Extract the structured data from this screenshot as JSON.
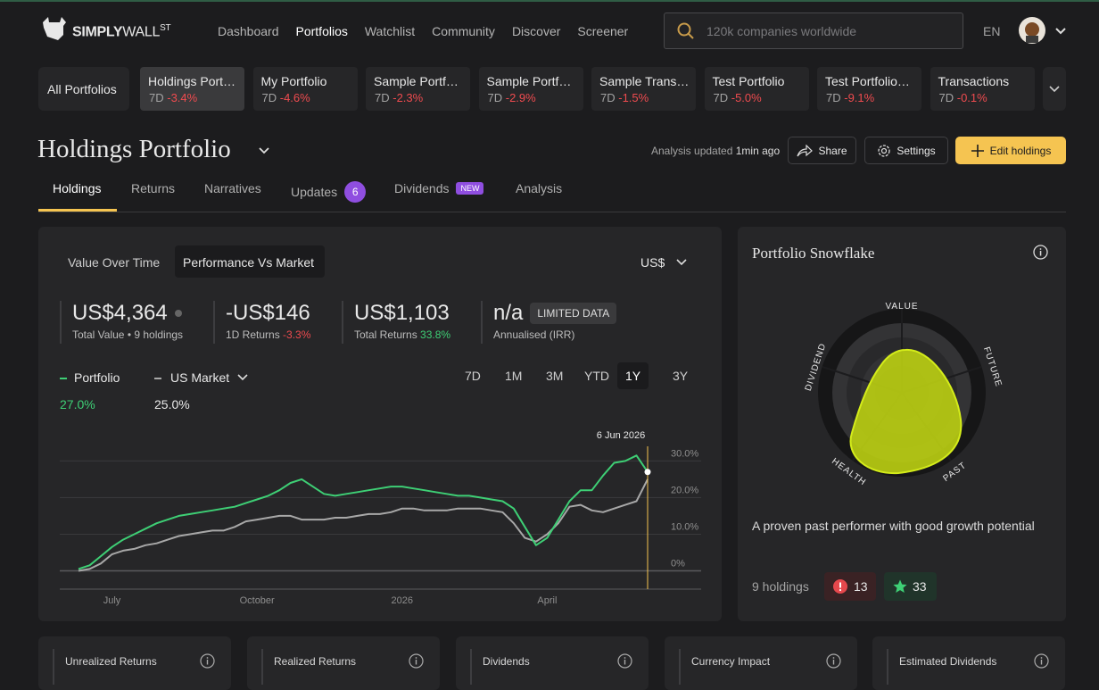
{
  "nav": {
    "logo": [
      "SIMPLY",
      "WALL",
      "ST"
    ],
    "links": [
      "Dashboard",
      "Portfolios",
      "Watchlist",
      "Community",
      "Discover",
      "Screener"
    ],
    "search_placeholder": "120k companies worldwide",
    "language": "EN"
  },
  "portfolio_tabs": {
    "all": "All Portfolios",
    "items": [
      {
        "name": "Holdings Port…",
        "period": "7D",
        "change": "-3.4%"
      },
      {
        "name": "My Portfolio",
        "period": "7D",
        "change": "-4.6%"
      },
      {
        "name": "Sample Portf…",
        "period": "7D",
        "change": "-2.3%"
      },
      {
        "name": "Sample Portf…",
        "period": "7D",
        "change": "-2.9%"
      },
      {
        "name": "Sample Trans…",
        "period": "7D",
        "change": "-1.5%"
      },
      {
        "name": "Test Portfolio",
        "period": "7D",
        "change": "-5.0%"
      },
      {
        "name": "Test Portfolio…",
        "period": "7D",
        "change": "-9.1%"
      },
      {
        "name": "Transactions",
        "period": "7D",
        "change": "-0.1%"
      }
    ]
  },
  "header": {
    "title": "Holdings Portfolio",
    "updated_label": "Analysis updated",
    "updated_time": "1min ago",
    "share": "Share",
    "settings": "Settings",
    "edit": "Edit holdings"
  },
  "tabs": [
    {
      "label": "Holdings"
    },
    {
      "label": "Returns"
    },
    {
      "label": "Narratives"
    },
    {
      "label": "Updates",
      "badge": 6
    },
    {
      "label": "Dividends",
      "badge": "NEW"
    },
    {
      "label": "Analysis"
    }
  ],
  "performance": {
    "toggles": [
      "Value Over Time",
      "Performance Vs Market"
    ],
    "currency": "US$",
    "stats": [
      {
        "value": "US$4,364",
        "label": "Total Value • 9 holdings"
      },
      {
        "value": "-US$146",
        "label": "1D Returns",
        "change": "-3.3%"
      },
      {
        "value": "US$1,103",
        "label": "Total Returns",
        "change": "33.8%"
      },
      {
        "value": "n/a",
        "badge": "LIMITED DATA",
        "label": "Annualised (IRR)"
      }
    ],
    "periods": [
      "7D",
      "1M",
      "3M",
      "YTD",
      "1Y",
      "3Y"
    ]
  },
  "chart_data": {
    "type": "line",
    "annotation": "6 Jun 2026",
    "categories": [
      null,
      null,
      null,
      "July",
      null,
      null,
      null,
      null,
      null,
      null,
      null,
      null,
      null,
      null,
      null,
      null,
      "October",
      null,
      null,
      null,
      null,
      null,
      null,
      null,
      null,
      null,
      null,
      null,
      null,
      "2026",
      null,
      null,
      null,
      null,
      null,
      null,
      null,
      null,
      null,
      null,
      null,
      null,
      "April",
      null,
      null,
      null,
      null,
      null,
      null,
      null,
      null,
      null
    ],
    "series": [
      {
        "name": "Portfolio",
        "color": "#3ecf75",
        "summary": "27.0%",
        "values": [
          0.5,
          1.5,
          4,
          6.5,
          8.5,
          10,
          11.5,
          13,
          14,
          15,
          15.5,
          16,
          16.5,
          17,
          17.5,
          18.5,
          19.5,
          20.5,
          22,
          24,
          25,
          23,
          21,
          20.5,
          21,
          21.5,
          22,
          22.5,
          23,
          23,
          22.5,
          22,
          21.5,
          21,
          20.5,
          20.5,
          20,
          19.5,
          19,
          17,
          12,
          7,
          9,
          14,
          19,
          22,
          22,
          26,
          29.5,
          30,
          31.5,
          27
        ]
      },
      {
        "name": "US Market",
        "color": "#a8a8a8",
        "summary": "25.0%",
        "values": [
          0,
          0.5,
          2,
          4.5,
          5.5,
          6,
          7,
          7.5,
          8.5,
          9.5,
          10,
          10.5,
          11,
          11,
          12,
          13.5,
          14,
          14.5,
          15,
          15,
          14,
          14,
          14,
          14.5,
          14.5,
          15,
          15.5,
          15.5,
          16,
          17,
          17,
          16.5,
          16.5,
          16.5,
          17,
          17,
          17,
          16.5,
          16,
          13,
          9,
          8,
          10,
          13,
          17.5,
          18,
          16.5,
          16,
          17,
          18,
          19,
          25
        ]
      }
    ],
    "ylim": [
      -5,
      34
    ],
    "yticks": [
      {
        "value": 0,
        "label": "0%"
      },
      {
        "value": 10,
        "label": "10.0%"
      },
      {
        "value": 20,
        "label": "20.0%"
      },
      {
        "value": 30,
        "label": "30.0%"
      }
    ],
    "grid": true
  },
  "snowflake": {
    "title": "Portfolio Snowflake",
    "axes": [
      "VALUE",
      "FUTURE",
      "PAST",
      "HEALTH",
      "DIVIDEND"
    ],
    "description": "A proven past performer with good growth potential",
    "holdings": "9 holdings",
    "warnings": 13,
    "rewards": 33
  },
  "bottom_cards": [
    "Unrealized Returns",
    "Realized Returns",
    "Dividends",
    "Currency Impact",
    "Estimated Dividends"
  ]
}
